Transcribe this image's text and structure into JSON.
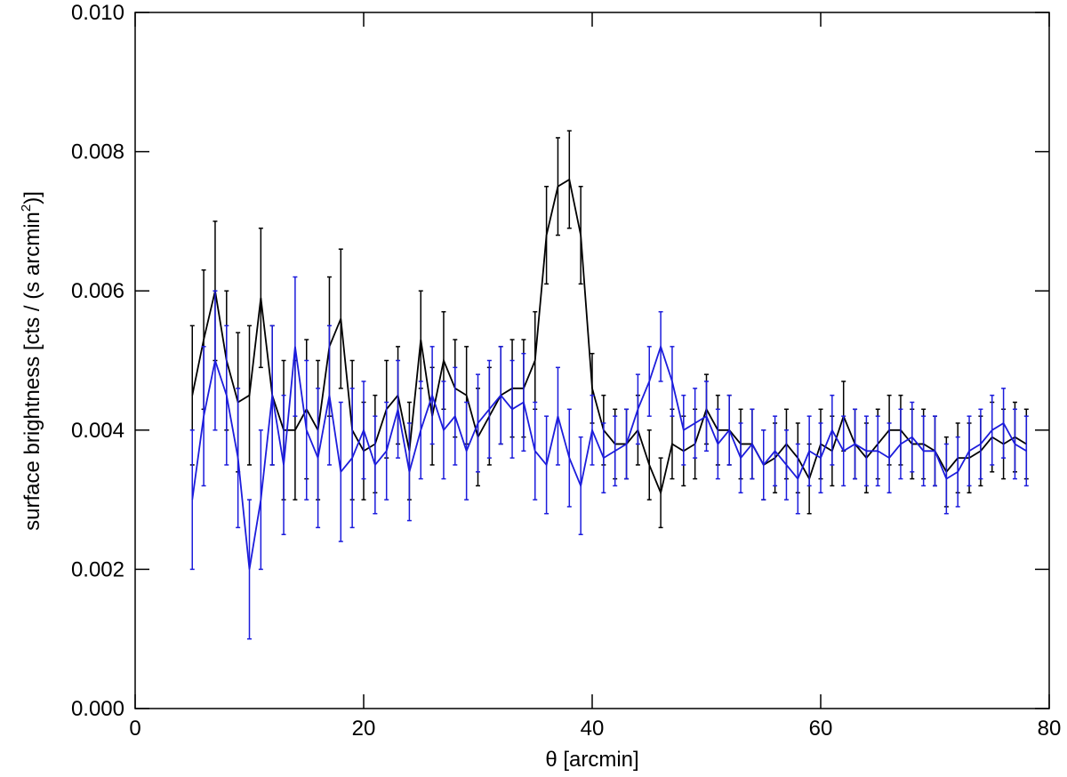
{
  "chart_data": {
    "type": "line",
    "xlabel": "θ [arcmin]",
    "ylabel": "surface brightness [cts / (s arcmin",
    "ylabel_sup": "2",
    "ylabel_end": ")]",
    "xlim": [
      0,
      80
    ],
    "xticks": [
      0,
      20,
      40,
      60,
      80
    ],
    "ylim": [
      0,
      0.01
    ],
    "yticks": [
      {
        "value": 0,
        "label": "0.000"
      },
      {
        "value": 0.002,
        "label": "0.002"
      },
      {
        "value": 0.004,
        "label": "0.004"
      },
      {
        "value": 0.006,
        "label": "0.006"
      },
      {
        "value": 0.008,
        "label": "0.008"
      },
      {
        "value": 0.01,
        "label": "0.010"
      }
    ],
    "x": [
      5,
      6,
      7,
      8,
      9,
      10,
      11,
      12,
      13,
      14,
      15,
      16,
      17,
      18,
      19,
      20,
      21,
      22,
      23,
      24,
      25,
      26,
      27,
      28,
      29,
      30,
      31,
      32,
      33,
      34,
      35,
      36,
      37,
      38,
      39,
      40,
      41,
      42,
      43,
      44,
      45,
      46,
      47,
      48,
      49,
      50,
      51,
      52,
      53,
      54,
      55,
      56,
      57,
      58,
      59,
      60,
      61,
      62,
      63,
      64,
      65,
      66,
      67,
      68,
      69,
      70,
      71,
      72,
      73,
      74,
      75,
      76,
      77,
      78
    ],
    "series": [
      {
        "color": "#000000",
        "values": [
          0.0045,
          0.0053,
          0.006,
          0.005,
          0.0044,
          0.0045,
          0.0059,
          0.0045,
          0.004,
          0.004,
          0.0043,
          0.004,
          0.0052,
          0.0056,
          0.004,
          0.0037,
          0.0038,
          0.0043,
          0.0045,
          0.0037,
          0.0053,
          0.0042,
          0.005,
          0.0046,
          0.0045,
          0.0039,
          0.0042,
          0.0045,
          0.0046,
          0.0046,
          0.005,
          0.0068,
          0.0075,
          0.0076,
          0.0068,
          0.0046,
          0.004,
          0.0038,
          0.0038,
          0.004,
          0.0035,
          0.0031,
          0.0038,
          0.0037,
          0.0038,
          0.0043,
          0.004,
          0.004,
          0.0038,
          0.0038,
          0.0035,
          0.0036,
          0.0038,
          0.0036,
          0.0033,
          0.0038,
          0.0037,
          0.0042,
          0.0038,
          0.0036,
          0.0038,
          0.004,
          0.004,
          0.0038,
          0.0038,
          0.0037,
          0.0034,
          0.0036,
          0.0036,
          0.0037,
          0.0039,
          0.0038,
          0.0039,
          0.0038
        ],
        "errors": [
          0.001,
          0.001,
          0.001,
          0.001,
          0.001,
          0.001,
          0.001,
          0.001,
          0.001,
          0.001,
          0.001,
          0.001,
          0.001,
          0.001,
          0.001,
          0.0007,
          0.0007,
          0.0007,
          0.0007,
          0.0007,
          0.0007,
          0.0007,
          0.0007,
          0.0007,
          0.0007,
          0.0007,
          0.0007,
          0.0007,
          0.0007,
          0.0007,
          0.0007,
          0.0007,
          0.0007,
          0.0007,
          0.0007,
          0.0005,
          0.0005,
          0.0005,
          0.0005,
          0.0005,
          0.0005,
          0.0005,
          0.0005,
          0.0005,
          0.0005,
          0.0005,
          0.0005,
          0.0005,
          0.0005,
          0.0005,
          0.0005,
          0.0005,
          0.0005,
          0.0005,
          0.0005,
          0.0005,
          0.0005,
          0.0005,
          0.0005,
          0.0005,
          0.0005,
          0.0005,
          0.0005,
          0.0005,
          0.0005,
          0.0005,
          0.0005,
          0.0005,
          0.0005,
          0.0005,
          0.0005,
          0.0005,
          0.0005,
          0.0005
        ]
      },
      {
        "color": "#1c1cdc",
        "values": [
          0.003,
          0.0042,
          0.005,
          0.0045,
          0.0036,
          0.002,
          0.003,
          0.0045,
          0.0035,
          0.0052,
          0.004,
          0.0036,
          0.0045,
          0.0034,
          0.0036,
          0.004,
          0.0035,
          0.0037,
          0.0043,
          0.0034,
          0.004,
          0.0045,
          0.004,
          0.0042,
          0.0037,
          0.0041,
          0.0043,
          0.0045,
          0.0043,
          0.0044,
          0.0037,
          0.0035,
          0.0042,
          0.0036,
          0.0032,
          0.004,
          0.0036,
          0.0037,
          0.0038,
          0.0043,
          0.0047,
          0.0052,
          0.0047,
          0.004,
          0.0041,
          0.0042,
          0.0038,
          0.004,
          0.0036,
          0.0038,
          0.0035,
          0.0037,
          0.0035,
          0.0033,
          0.0037,
          0.0036,
          0.004,
          0.0037,
          0.0038,
          0.0037,
          0.0037,
          0.0036,
          0.0038,
          0.0039,
          0.0037,
          0.0037,
          0.0033,
          0.0034,
          0.0037,
          0.0038,
          0.004,
          0.0041,
          0.0038,
          0.0037
        ],
        "errors": [
          0.001,
          0.001,
          0.001,
          0.001,
          0.001,
          0.001,
          0.001,
          0.001,
          0.001,
          0.001,
          0.001,
          0.001,
          0.001,
          0.001,
          0.001,
          0.0007,
          0.0007,
          0.0007,
          0.0007,
          0.0007,
          0.0007,
          0.0007,
          0.0007,
          0.0007,
          0.0007,
          0.0007,
          0.0007,
          0.0007,
          0.0007,
          0.0007,
          0.0007,
          0.0007,
          0.0007,
          0.0007,
          0.0007,
          0.0005,
          0.0005,
          0.0005,
          0.0005,
          0.0005,
          0.0005,
          0.0005,
          0.0005,
          0.0005,
          0.0005,
          0.0005,
          0.0005,
          0.0005,
          0.0005,
          0.0005,
          0.0005,
          0.0005,
          0.0005,
          0.0005,
          0.0005,
          0.0005,
          0.0005,
          0.0005,
          0.0005,
          0.0005,
          0.0005,
          0.0005,
          0.0005,
          0.0005,
          0.0005,
          0.0005,
          0.0005,
          0.0005,
          0.0005,
          0.0005,
          0.0005,
          0.0005,
          0.0005,
          0.0005
        ]
      }
    ]
  }
}
